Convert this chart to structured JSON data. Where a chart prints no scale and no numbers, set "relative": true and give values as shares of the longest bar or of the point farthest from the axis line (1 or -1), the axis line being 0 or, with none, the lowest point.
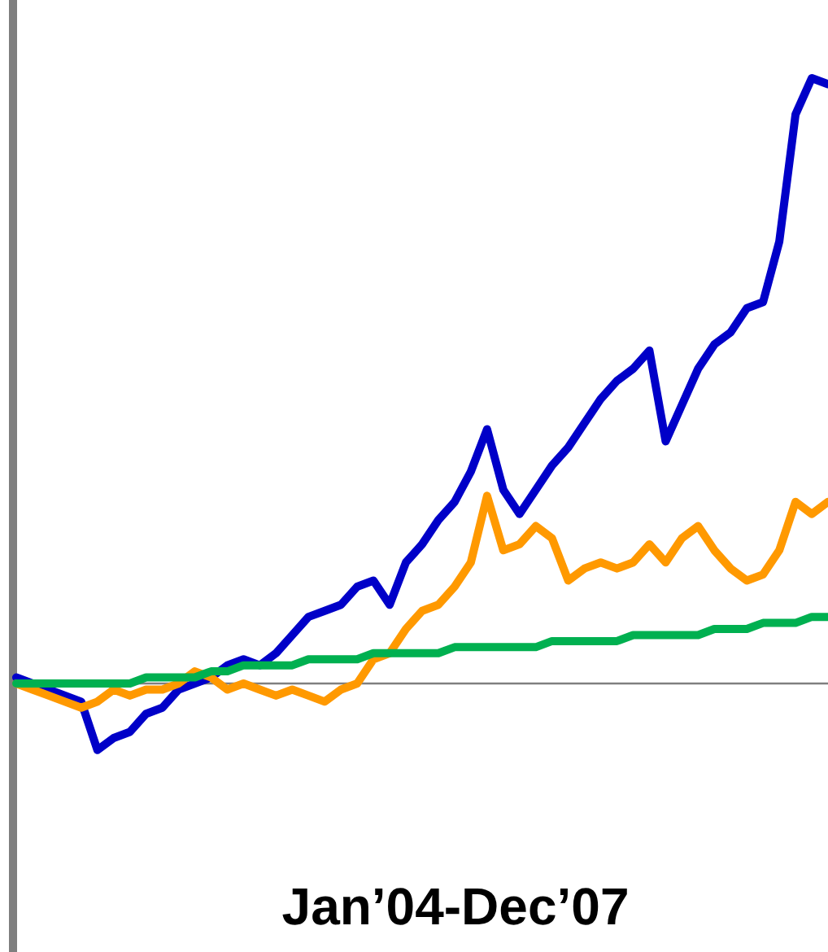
{
  "chart_data": {
    "type": "line",
    "relative": true,
    "xlabel": "Jan’04-Dec’07",
    "line_style": "solid",
    "categories": [
      null,
      null,
      null,
      null,
      null,
      null,
      null,
      null,
      null,
      null,
      null,
      null,
      null,
      null,
      null,
      null,
      null,
      null,
      null,
      null,
      null,
      null,
      null,
      null,
      null,
      null,
      null,
      null,
      null,
      null,
      null,
      null,
      null,
      null,
      null,
      null,
      null,
      null,
      null,
      null,
      null,
      null,
      null,
      null,
      null,
      null,
      null,
      null,
      null,
      null,
      null
    ],
    "series": [
      {
        "color": "#0000c8",
        "values": [
          0.01,
          0,
          -0.01,
          -0.02,
          -0.03,
          -0.11,
          -0.09,
          -0.08,
          -0.05,
          -0.04,
          -0.01,
          0,
          0.01,
          0.03,
          0.04,
          0.03,
          0.05,
          0.08,
          0.11,
          0.12,
          0.13,
          0.16,
          0.17,
          0.13,
          0.2,
          0.23,
          0.27,
          0.3,
          0.35,
          0.42,
          0.32,
          0.28,
          0.32,
          0.36,
          0.39,
          0.43,
          0.47,
          0.5,
          0.52,
          0.55,
          0.4,
          0.46,
          0.52,
          0.56,
          0.58,
          0.62,
          0.63,
          0.73,
          0.94,
          1,
          0.99
        ]
      },
      {
        "color": "#ff9900",
        "values": [
          0,
          -0.01,
          -0.02,
          -0.03,
          -0.04,
          -0.03,
          -0.01,
          -0.02,
          -0.01,
          -0.01,
          0,
          0.02,
          0.01,
          -0.01,
          0,
          -0.01,
          -0.02,
          -0.01,
          -0.02,
          -0.03,
          -0.01,
          0,
          0.04,
          0.05,
          0.09,
          0.12,
          0.13,
          0.16,
          0.2,
          0.31,
          0.22,
          0.23,
          0.26,
          0.24,
          0.17,
          0.19,
          0.2,
          0.19,
          0.2,
          0.23,
          0.2,
          0.24,
          0.26,
          0.22,
          0.19,
          0.17,
          0.18,
          0.22,
          0.3,
          0.28,
          0.3
        ]
      },
      {
        "color": "#00b050",
        "values": [
          0,
          0,
          0,
          0,
          0,
          0,
          0,
          0,
          0.01,
          0.01,
          0.01,
          0.01,
          0.02,
          0.02,
          0.03,
          0.03,
          0.03,
          0.03,
          0.04,
          0.04,
          0.04,
          0.04,
          0.05,
          0.05,
          0.05,
          0.05,
          0.05,
          0.06,
          0.06,
          0.06,
          0.06,
          0.06,
          0.06,
          0.07,
          0.07,
          0.07,
          0.07,
          0.07,
          0.08,
          0.08,
          0.08,
          0.08,
          0.08,
          0.09,
          0.09,
          0.09,
          0.1,
          0.1,
          0.1,
          0.11,
          0.11
        ]
      }
    ]
  }
}
